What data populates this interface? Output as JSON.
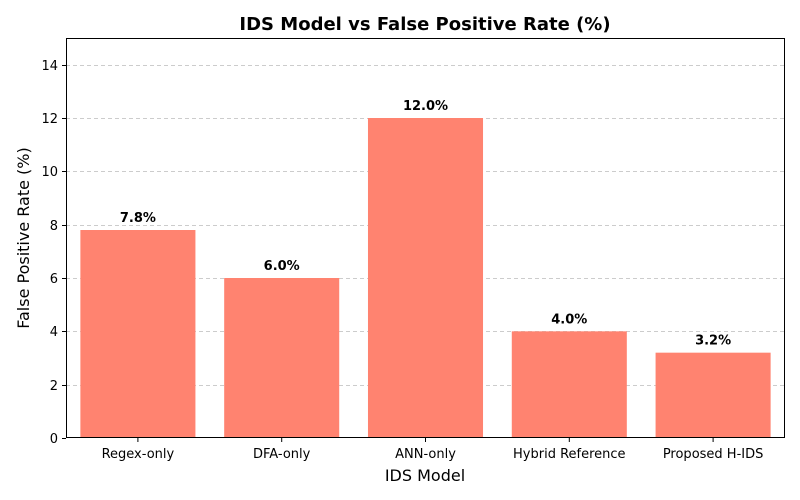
{
  "chart_data": {
    "type": "bar",
    "title": "IDS Model vs False Positive Rate (%)",
    "xlabel": "IDS Model",
    "ylabel": "False Positive Rate (%)",
    "categories": [
      "Regex-only",
      "DFA-only",
      "ANN-only",
      "Hybrid Reference",
      "Proposed H-IDS"
    ],
    "values": [
      7.8,
      6.0,
      12.0,
      4.0,
      3.2
    ],
    "value_labels": [
      "7.8%",
      "6.0%",
      "12.0%",
      "4.0%",
      "3.2%"
    ],
    "ylim": [
      0,
      15
    ],
    "yticks": [
      0,
      2,
      4,
      6,
      8,
      10,
      12,
      14
    ],
    "ytick_labels": [
      "0",
      "2",
      "4",
      "6",
      "8",
      "10",
      "12",
      "14"
    ],
    "grid": "y-dashed",
    "bar_color": "#ff8370"
  }
}
